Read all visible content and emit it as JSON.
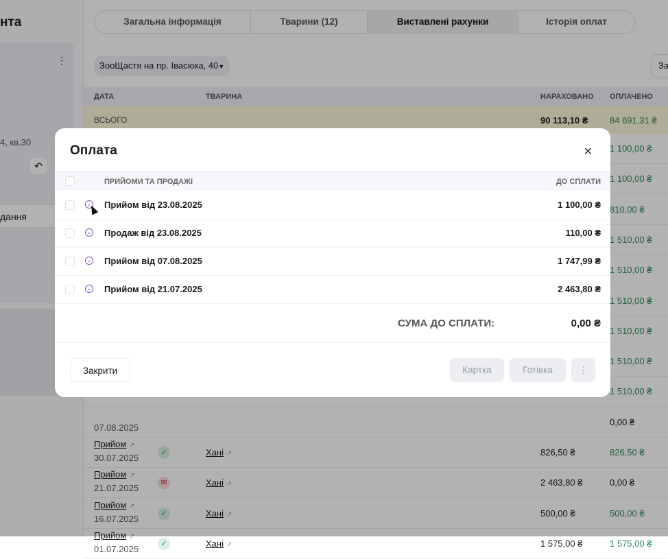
{
  "sidebar": {
    "title_fragment": "нта",
    "address_fragment": "4, кв.30",
    "item_fragment": "дання"
  },
  "tabs": [
    {
      "label": "Загальна інформація"
    },
    {
      "label": "Тварини (12)"
    },
    {
      "label": "Виставлені рахунки",
      "active": true
    },
    {
      "label": "Історія оплат"
    }
  ],
  "clinic_select": "ЗооЩастя на пр. Івасюка, 40",
  "right_button_fragment": "За",
  "table": {
    "headers": {
      "date": "ДАТА",
      "pet": "ТВАРИНА",
      "charged": "НАРАХОВАНО",
      "paid": "ОПЛАЧЕНО"
    },
    "total": {
      "label": "ВСЬОГО",
      "charged": "90 113,10 ₴",
      "paid": "84 691,31 ₴"
    },
    "hidden_rows_paid": [
      "1 100,00 ₴",
      "1 100,00 ₴",
      "810,00 ₴",
      "1 510,00 ₴",
      "1 510,00 ₴",
      "1 510,00 ₴",
      "1 510,00 ₴",
      "1 510,00 ₴",
      "1 510,00 ₴"
    ],
    "partial_row": {
      "date": "07.08.2025",
      "paid": "0,00 ₴"
    },
    "rows": [
      {
        "type": "Прийом",
        "date": "30.07.2025",
        "status": "paid",
        "pet": "Хані",
        "charged": "826,50 ₴",
        "paid": "826,50 ₴"
      },
      {
        "type": "Прийом",
        "date": "21.07.2025",
        "status": "unpaid",
        "pet": "Хані",
        "charged": "2 463,80 ₴",
        "paid": "0,00 ₴"
      },
      {
        "type": "Прийом",
        "date": "16.07.2025",
        "status": "paid",
        "pet": "Хані",
        "charged": "500,00 ₴",
        "paid": "500,00 ₴"
      },
      {
        "type": "Прийом",
        "date": "01.07.2025",
        "status": "paid",
        "pet": "Хані",
        "charged": "1 575,00 ₴",
        "paid": "1 575,00 ₴"
      }
    ]
  },
  "modal": {
    "title": "Оплата",
    "header_label": "ПРИЙОМИ ТА ПРОДАЖІ",
    "header_amount": "ДО СПЛАТИ",
    "items": [
      {
        "name": "Прийом від 23.08.2025",
        "due": "1 100,00 ₴"
      },
      {
        "name": "Продаж від 23.08.2025",
        "due": "110,00 ₴"
      },
      {
        "name": "Прийом від 07.08.2025",
        "due": "1 747,99 ₴"
      },
      {
        "name": "Прийом від 21.07.2025",
        "due": "2 463,80 ₴"
      }
    ],
    "sum_label": "СУМА ДО СПЛАТИ:",
    "sum_value": "0,00 ₴",
    "close_label": "Закрити",
    "card_label": "Картка",
    "cash_label": "Готівка"
  },
  "colors": {
    "paid_green": "#2e8a5a",
    "accent_purple": "#7a4fc0",
    "total_row": "#fbf7d9"
  }
}
